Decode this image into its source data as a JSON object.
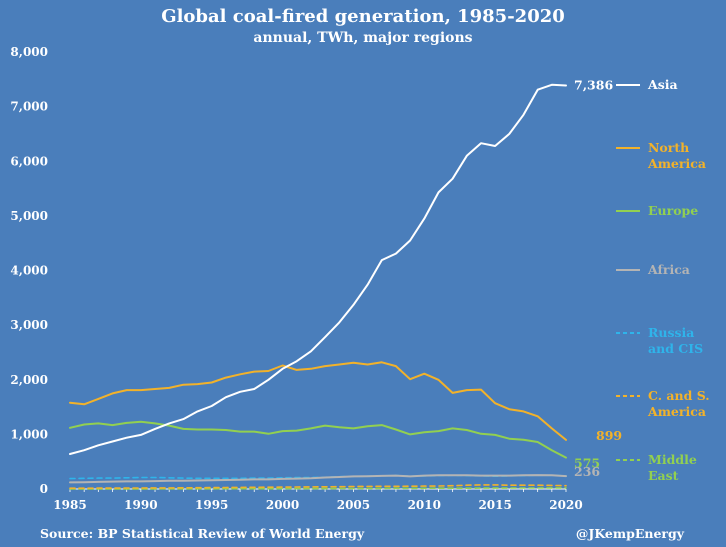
{
  "chart_data": {
    "type": "line",
    "title": "Global coal-fired generation, 1985-2020",
    "subtitle": "annual, TWh, major regions",
    "source": "Source: BP Statistical Review of World Energy",
    "credit": "@JKempEnergy",
    "ylim": [
      0,
      8000
    ],
    "yticks": [
      "0",
      "1,000",
      "2,000",
      "3,000",
      "4,000",
      "5,000",
      "6,000",
      "7,000",
      "8,000"
    ],
    "xticks": [
      "1985",
      "1990",
      "1995",
      "2000",
      "2005",
      "2010",
      "2015",
      "2020"
    ],
    "grid": false,
    "legend_position": "right",
    "x": [
      1985,
      1986,
      1987,
      1988,
      1989,
      1990,
      1991,
      1992,
      1993,
      1994,
      1995,
      1996,
      1997,
      1998,
      1999,
      2000,
      2001,
      2002,
      2003,
      2004,
      2005,
      2006,
      2007,
      2008,
      2009,
      2010,
      2011,
      2012,
      2013,
      2014,
      2015,
      2016,
      2017,
      2018,
      2019,
      2020
    ],
    "series": [
      {
        "name": "Asia",
        "color": "#ffffff",
        "dash": "solid",
        "end_label": "7,386",
        "legend_lines": [
          "Asia"
        ],
        "values": [
          640,
          710,
          800,
          870,
          940,
          990,
          1100,
          1200,
          1280,
          1420,
          1520,
          1680,
          1780,
          1830,
          2000,
          2200,
          2340,
          2520,
          2780,
          3050,
          3370,
          3740,
          4190,
          4310,
          4550,
          4950,
          5430,
          5680,
          6100,
          6330,
          6280,
          6500,
          6850,
          7310,
          7400,
          7386
        ]
      },
      {
        "name": "North America",
        "color": "#f2b22a",
        "dash": "solid",
        "end_label": "899",
        "legend_lines": [
          "North",
          "America"
        ],
        "values": [
          1580,
          1550,
          1650,
          1750,
          1810,
          1810,
          1830,
          1850,
          1910,
          1920,
          1950,
          2040,
          2100,
          2150,
          2160,
          2260,
          2180,
          2200,
          2250,
          2280,
          2310,
          2280,
          2320,
          2250,
          2010,
          2110,
          2000,
          1760,
          1810,
          1820,
          1570,
          1460,
          1420,
          1330,
          1110,
          899
        ]
      },
      {
        "name": "Europe",
        "color": "#92d050",
        "dash": "solid",
        "end_label": "575",
        "legend_lines": [
          "Europe"
        ],
        "values": [
          1120,
          1180,
          1200,
          1170,
          1210,
          1230,
          1200,
          1160,
          1100,
          1090,
          1090,
          1080,
          1050,
          1050,
          1010,
          1060,
          1070,
          1110,
          1160,
          1130,
          1110,
          1150,
          1170,
          1090,
          1000,
          1040,
          1060,
          1110,
          1080,
          1010,
          990,
          920,
          900,
          860,
          710,
          575
        ]
      },
      {
        "name": "Africa",
        "color": "#b4b4b4",
        "dash": "solid",
        "end_label": "236",
        "legend_lines": [
          "Africa"
        ],
        "values": [
          120,
          125,
          130,
          135,
          140,
          140,
          145,
          150,
          150,
          155,
          160,
          165,
          170,
          175,
          175,
          185,
          190,
          195,
          210,
          220,
          230,
          235,
          240,
          245,
          230,
          245,
          250,
          250,
          250,
          245,
          245,
          245,
          250,
          255,
          250,
          236
        ]
      },
      {
        "name": "Russia and CIS",
        "color": "#2fb4ea",
        "dash": "5,4",
        "end_label": "",
        "legend_lines": [
          "Russia",
          "and CIS"
        ],
        "values": [
          190,
          195,
          200,
          200,
          205,
          210,
          210,
          205,
          200,
          195,
          195,
          195,
          195,
          200,
          200,
          205,
          210,
          210,
          215,
          225,
          230,
          235,
          240,
          245,
          235,
          240,
          245,
          250,
          245,
          240,
          235,
          240,
          245,
          250,
          250,
          240
        ]
      },
      {
        "name": "C. and S. America",
        "color": "#f2b22a",
        "dash": "5,4",
        "end_label": "",
        "legend_lines": [
          "C. and S.",
          "America"
        ],
        "values": [
          15,
          15,
          16,
          17,
          18,
          19,
          20,
          21,
          22,
          24,
          25,
          27,
          29,
          31,
          33,
          35,
          37,
          39,
          41,
          43,
          45,
          47,
          49,
          50,
          51,
          53,
          55,
          60,
          70,
          75,
          75,
          70,
          70,
          70,
          66,
          60
        ]
      },
      {
        "name": "Middle East",
        "color": "#92d050",
        "dash": "5,4",
        "end_label": "",
        "legend_lines": [
          "Middle",
          "East"
        ],
        "values": [
          1,
          1,
          1,
          1,
          2,
          2,
          2,
          3,
          3,
          4,
          4,
          5,
          5,
          6,
          6,
          7,
          7,
          8,
          8,
          9,
          9,
          10,
          11,
          12,
          12,
          13,
          14,
          14,
          15,
          16,
          17,
          18,
          18,
          19,
          20,
          20
        ]
      }
    ]
  }
}
